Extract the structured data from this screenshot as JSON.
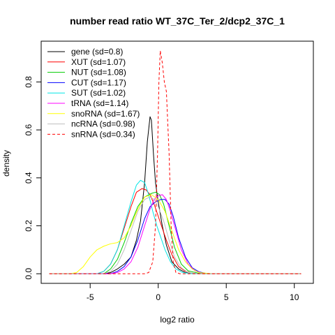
{
  "chart_data": {
    "type": "line",
    "title": "number read ratio WT_37C_Ter_2/dcp2_37C_1",
    "xlabel": "log2 ratio",
    "ylabel": "density",
    "xlim": [
      -8.6,
      11.4
    ],
    "ylim": [
      -0.04,
      0.97
    ],
    "x_ticks": [
      -5,
      0,
      5,
      10
    ],
    "x_tick_labels": [
      "-5",
      "0",
      "5",
      "10"
    ],
    "y_ticks": [
      0.0,
      0.2,
      0.4,
      0.6,
      0.8
    ],
    "y_tick_labels": [
      "0.0",
      "0.2",
      "0.4",
      "0.6",
      "0.8"
    ],
    "legend_position": "top-left",
    "grid": false,
    "series": [
      {
        "name": "gene (sd=0.8)",
        "color": "#000000",
        "dash": "solid",
        "points": [
          [
            -8,
            0
          ],
          [
            -4,
            0
          ],
          [
            -3.5,
            0.005
          ],
          [
            -3,
            0.02
          ],
          [
            -2.5,
            0.04
          ],
          [
            -2,
            0.07
          ],
          [
            -1.6,
            0.14
          ],
          [
            -1.3,
            0.22
          ],
          [
            -1.0,
            0.38
          ],
          [
            -0.8,
            0.55
          ],
          [
            -0.6,
            0.655
          ],
          [
            -0.5,
            0.64
          ],
          [
            -0.35,
            0.5
          ],
          [
            -0.2,
            0.38
          ],
          [
            0,
            0.3
          ],
          [
            0.3,
            0.2
          ],
          [
            0.6,
            0.12
          ],
          [
            1.0,
            0.05
          ],
          [
            1.5,
            0.02
          ],
          [
            2,
            0.005
          ],
          [
            3,
            0
          ],
          [
            10.5,
            0
          ]
        ]
      },
      {
        "name": "XUT (sd=1.07)",
        "color": "#ff0000",
        "dash": "solid",
        "points": [
          [
            -8,
            0
          ],
          [
            -4.5,
            0
          ],
          [
            -4,
            0.01
          ],
          [
            -3.5,
            0.04
          ],
          [
            -3,
            0.1
          ],
          [
            -2.5,
            0.19
          ],
          [
            -2,
            0.28
          ],
          [
            -1.6,
            0.34
          ],
          [
            -1.2,
            0.355
          ],
          [
            -0.9,
            0.35
          ],
          [
            -0.6,
            0.33
          ],
          [
            -0.3,
            0.29
          ],
          [
            0,
            0.24
          ],
          [
            0.3,
            0.19
          ],
          [
            0.6,
            0.14
          ],
          [
            1.0,
            0.08
          ],
          [
            1.5,
            0.03
          ],
          [
            2,
            0.01
          ],
          [
            2.5,
            0.002
          ],
          [
            3,
            0
          ],
          [
            10.5,
            0
          ]
        ]
      },
      {
        "name": "NUT (sd=1.08)",
        "color": "#00cc00",
        "dash": "solid",
        "points": [
          [
            -8,
            0
          ],
          [
            -4,
            0
          ],
          [
            -3.5,
            0.02
          ],
          [
            -3,
            0.06
          ],
          [
            -2.5,
            0.13
          ],
          [
            -2,
            0.21
          ],
          [
            -1.5,
            0.28
          ],
          [
            -1.0,
            0.32
          ],
          [
            -0.5,
            0.335
          ],
          [
            -0.2,
            0.34
          ],
          [
            0.1,
            0.33
          ],
          [
            0.4,
            0.29
          ],
          [
            0.8,
            0.2
          ],
          [
            1.2,
            0.11
          ],
          [
            1.7,
            0.04
          ],
          [
            2.2,
            0.012
          ],
          [
            3,
            0.002
          ],
          [
            3.5,
            0
          ],
          [
            10.5,
            0
          ]
        ]
      },
      {
        "name": "CUT (sd=1.17)",
        "color": "#0000ff",
        "dash": "solid",
        "points": [
          [
            -8,
            0
          ],
          [
            -3.5,
            0
          ],
          [
            -3,
            0.01
          ],
          [
            -2.5,
            0.03
          ],
          [
            -2,
            0.07
          ],
          [
            -1.5,
            0.14
          ],
          [
            -1.0,
            0.23
          ],
          [
            -0.6,
            0.28
          ],
          [
            -0.2,
            0.3
          ],
          [
            0.2,
            0.31
          ],
          [
            0.5,
            0.31
          ],
          [
            0.8,
            0.29
          ],
          [
            1.1,
            0.24
          ],
          [
            1.5,
            0.15
          ],
          [
            2,
            0.07
          ],
          [
            2.5,
            0.025
          ],
          [
            3,
            0.008
          ],
          [
            3.5,
            0.002
          ],
          [
            4,
            0
          ],
          [
            10.5,
            0
          ]
        ]
      },
      {
        "name": "SUT (sd=1.02)",
        "color": "#00e5e5",
        "dash": "solid",
        "points": [
          [
            -8,
            0
          ],
          [
            -4.5,
            0
          ],
          [
            -4,
            0.01
          ],
          [
            -3.5,
            0.04
          ],
          [
            -3,
            0.1
          ],
          [
            -2.5,
            0.2
          ],
          [
            -2,
            0.3
          ],
          [
            -1.6,
            0.37
          ],
          [
            -1.3,
            0.39
          ],
          [
            -1.0,
            0.38
          ],
          [
            -0.7,
            0.33
          ],
          [
            -0.4,
            0.26
          ],
          [
            -0.1,
            0.2
          ],
          [
            0.2,
            0.15
          ],
          [
            0.5,
            0.1
          ],
          [
            0.9,
            0.05
          ],
          [
            1.3,
            0.02
          ],
          [
            1.8,
            0.005
          ],
          [
            2.5,
            0
          ],
          [
            10.5,
            0
          ]
        ]
      },
      {
        "name": "tRNA (sd=1.14)",
        "color": "#ff00ff",
        "dash": "solid",
        "points": [
          [
            -8,
            0
          ],
          [
            -3.5,
            0
          ],
          [
            -3,
            0.005
          ],
          [
            -2.5,
            0.02
          ],
          [
            -2,
            0.05
          ],
          [
            -1.5,
            0.11
          ],
          [
            -1.0,
            0.2
          ],
          [
            -0.6,
            0.27
          ],
          [
            -0.3,
            0.31
          ],
          [
            0,
            0.325
          ],
          [
            0.3,
            0.33
          ],
          [
            0.6,
            0.31
          ],
          [
            0.9,
            0.26
          ],
          [
            1.3,
            0.18
          ],
          [
            1.7,
            0.1
          ],
          [
            2.2,
            0.04
          ],
          [
            2.7,
            0.012
          ],
          [
            3.2,
            0.003
          ],
          [
            4,
            0
          ],
          [
            10.5,
            0
          ]
        ]
      },
      {
        "name": "snoRNA (sd=1.67)",
        "color": "#ffff00",
        "dash": "solid",
        "points": [
          [
            -8,
            0
          ],
          [
            -6.5,
            0
          ],
          [
            -6,
            0.005
          ],
          [
            -5.5,
            0.03
          ],
          [
            -5,
            0.07
          ],
          [
            -4.5,
            0.1
          ],
          [
            -4,
            0.115
          ],
          [
            -3.5,
            0.125
          ],
          [
            -3,
            0.13
          ],
          [
            -2.5,
            0.15
          ],
          [
            -2,
            0.2
          ],
          [
            -1.5,
            0.27
          ],
          [
            -1.0,
            0.32
          ],
          [
            -0.5,
            0.33
          ],
          [
            0,
            0.31
          ],
          [
            0.5,
            0.26
          ],
          [
            1.0,
            0.18
          ],
          [
            1.5,
            0.1
          ],
          [
            2,
            0.05
          ],
          [
            2.5,
            0.02
          ],
          [
            3,
            0.005
          ],
          [
            4,
            0
          ],
          [
            10.5,
            0
          ]
        ]
      },
      {
        "name": "ncRNA (sd=0.98)",
        "color": "#bebebe",
        "dash": "solid",
        "points": [
          [
            -8,
            0
          ],
          [
            -4,
            0
          ],
          [
            -3.5,
            0.01
          ],
          [
            -3,
            0.04
          ],
          [
            -2.5,
            0.1
          ],
          [
            -2,
            0.18
          ],
          [
            -1.5,
            0.26
          ],
          [
            -1.0,
            0.31
          ],
          [
            -0.6,
            0.32
          ],
          [
            -0.3,
            0.31
          ],
          [
            0,
            0.28
          ],
          [
            0.4,
            0.22
          ],
          [
            0.8,
            0.14
          ],
          [
            1.2,
            0.07
          ],
          [
            1.7,
            0.025
          ],
          [
            2.2,
            0.005
          ],
          [
            3,
            0
          ],
          [
            10.5,
            0
          ]
        ]
      },
      {
        "name": "snRNA (sd=0.34)",
        "color": "#ff0000",
        "dash": "dashed",
        "points": [
          [
            -8,
            0
          ],
          [
            -1.0,
            0
          ],
          [
            -0.7,
            0.005
          ],
          [
            -0.4,
            0.05
          ],
          [
            -0.2,
            0.2
          ],
          [
            -0.05,
            0.5
          ],
          [
            0.05,
            0.8
          ],
          [
            0.15,
            0.93
          ],
          [
            0.3,
            0.88
          ],
          [
            0.45,
            0.8
          ],
          [
            0.6,
            0.76
          ],
          [
            0.8,
            0.5
          ],
          [
            0.95,
            0.2
          ],
          [
            1.1,
            0.05
          ],
          [
            1.3,
            0.005
          ],
          [
            1.6,
            0
          ],
          [
            10.5,
            0
          ]
        ]
      }
    ]
  }
}
